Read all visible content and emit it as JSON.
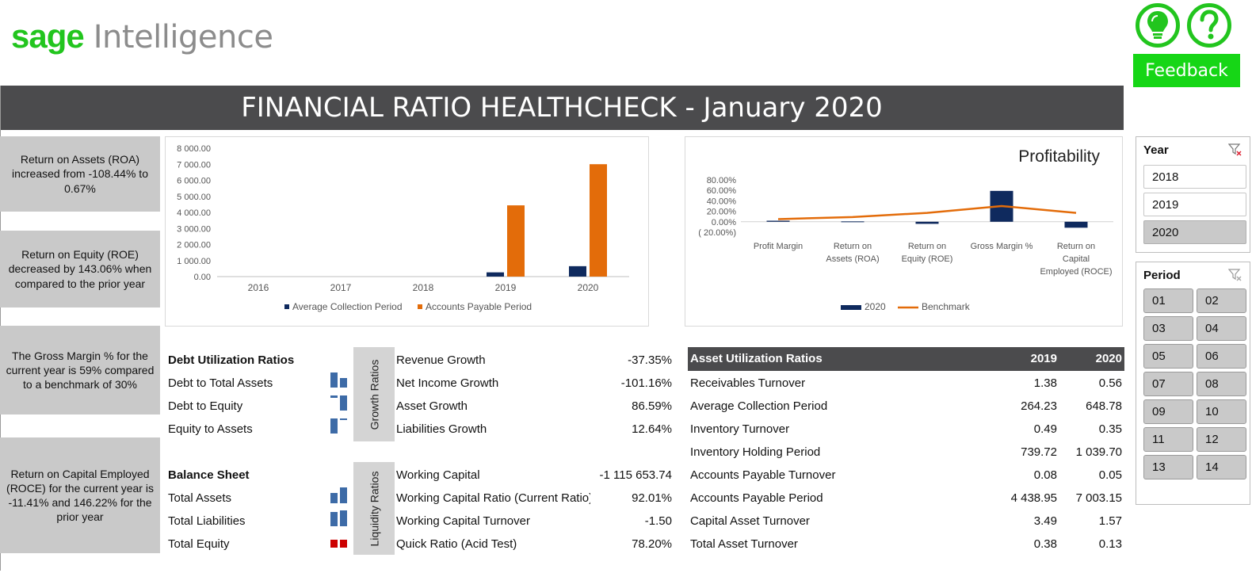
{
  "brand": {
    "sage": "sage",
    "intelligence": "Intelligence",
    "green": "#22c51e"
  },
  "header": {
    "title": "FINANCIAL RATIO HEALTHCHECK - January 2020",
    "feedback_label": "Feedback",
    "idea_icon": "lightbulb-icon",
    "help_icon": "question-icon"
  },
  "insights": [
    "Return on Assets (ROA) increased from -108.44% to 0.67%",
    "Return on Equity (ROE) decreased by 143.06% when compared to the prior year",
    "The Gross Margin % for the current year is 59% compared to a benchmark of 30%",
    "Return on Capital Employed (ROCE) for the current year is -11.41% and 146.22% for the prior year"
  ],
  "chart_data": [
    {
      "type": "bar",
      "title": "",
      "categories": [
        "2016",
        "2017",
        "2018",
        "2019",
        "2020"
      ],
      "series": [
        {
          "name": "Average Collection Period",
          "color": "#0f2a5e",
          "values": [
            0,
            0,
            0,
            264.23,
            648.78
          ]
        },
        {
          "name": "Accounts Payable Period",
          "color": "#e36c0a",
          "values": [
            0,
            0,
            0,
            4438.95,
            7003.15
          ]
        }
      ],
      "ylim": [
        0,
        8000
      ],
      "yticks": [
        "8 000.00",
        "7 000.00",
        "6 000.00",
        "5 000.00",
        "4 000.00",
        "3 000.00",
        "2 000.00",
        "1 000.00",
        "0.00"
      ],
      "legend": "bottom",
      "grid": false
    },
    {
      "type": "bar",
      "title": "Profitability",
      "categories": [
        "Profit Margin",
        "Return on Assets (ROA)",
        "Return on Equity (ROE)",
        "Gross Margin %",
        "Return on Capital Employed (ROCE)"
      ],
      "series": [
        {
          "name": "2020",
          "color": "#0f2a5e",
          "kind": "bar",
          "values": [
            2.0,
            0.67,
            -4.0,
            59.0,
            -11.41
          ]
        },
        {
          "name": "Benchmark",
          "color": "#e36c0a",
          "kind": "line",
          "values": [
            5.0,
            9.0,
            17.0,
            30.0,
            17.0
          ]
        }
      ],
      "ylim": [
        -20,
        80
      ],
      "yticks": [
        "80.00%",
        "60.00%",
        "40.00%",
        "20.00%",
        "0.00%",
        "( 20.00%)"
      ],
      "legend": "bottom",
      "grid": false
    }
  ],
  "debt": {
    "title": "Debt Utilization Ratios",
    "rows": [
      "Debt to Total Assets",
      "Debt to Equity",
      "Equity to Assets"
    ]
  },
  "balance": {
    "title": "Balance Sheet",
    "rows": [
      "Total Assets",
      "Total Liabilities",
      "Total Equity"
    ]
  },
  "growth": {
    "label": "Growth Ratios",
    "rows": [
      {
        "name": "Revenue Growth",
        "value": "-37.35%"
      },
      {
        "name": "Net Income Growth",
        "value": "-101.16%"
      },
      {
        "name": "Asset Growth",
        "value": "86.59%"
      },
      {
        "name": "Liabilities Growth",
        "value": "12.64%"
      }
    ]
  },
  "liquidity": {
    "label": "Liquidity Ratios",
    "rows": [
      {
        "name": "Working Capital",
        "value": "-1 115 653.74"
      },
      {
        "name": "Working Capital Ratio (Current Ratio)",
        "value": "92.01%"
      },
      {
        "name": "Working Capital Turnover",
        "value": "-1.50"
      },
      {
        "name": "Quick Ratio (Acid Test)",
        "value": "78.20%"
      }
    ]
  },
  "asset_util": {
    "title": "Asset Utilization Ratios",
    "col_2019": "2019",
    "col_2020": "2020",
    "rows": [
      {
        "name": "Receivables Turnover",
        "v2019": "1.38",
        "v2020": "0.56"
      },
      {
        "name": "Average Collection Period",
        "v2019": "264.23",
        "v2020": "648.78"
      },
      {
        "name": "Inventory Turnover",
        "v2019": "0.49",
        "v2020": "0.35"
      },
      {
        "name": "Inventory Holding Period",
        "v2019": "739.72",
        "v2020": "1 039.70"
      },
      {
        "name": "Accounts Payable Turnover",
        "v2019": "0.08",
        "v2020": "0.05"
      },
      {
        "name": "Accounts Payable Period",
        "v2019": "4 438.95",
        "v2020": "7 003.15"
      },
      {
        "name": "Capital Asset Turnover",
        "v2019": "3.49",
        "v2020": "1.57"
      },
      {
        "name": "Total Asset Turnover",
        "v2019": "0.38",
        "v2020": "0.13"
      }
    ]
  },
  "slicers": {
    "year": {
      "title": "Year",
      "items": [
        "2018",
        "2019",
        "2020"
      ],
      "selected": "2020"
    },
    "period": {
      "title": "Period",
      "items": [
        "01",
        "02",
        "03",
        "04",
        "05",
        "06",
        "07",
        "08",
        "09",
        "10",
        "11",
        "12",
        "13",
        "14"
      ]
    }
  }
}
